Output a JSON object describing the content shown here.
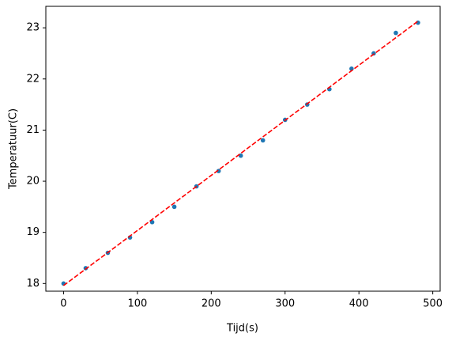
{
  "chart_data": {
    "type": "scatter",
    "xlabel": "Tijd(s)",
    "ylabel": "Temperatuur(C)",
    "xlim": [
      -24,
      510
    ],
    "ylim": [
      17.85,
      23.42
    ],
    "xticks": [
      0,
      100,
      200,
      300,
      400,
      500
    ],
    "yticks": [
      18,
      19,
      20,
      21,
      22,
      23
    ],
    "series": [
      {
        "color": "#1f77b4",
        "x": [
          0,
          30,
          60,
          90,
          120,
          150,
          180,
          210,
          240,
          270,
          300,
          330,
          360,
          390,
          420,
          450,
          480
        ],
        "values": [
          18.0,
          18.3,
          18.6,
          18.9,
          19.2,
          19.5,
          19.9,
          20.2,
          20.5,
          20.8,
          21.2,
          21.5,
          21.8,
          22.2,
          22.5,
          22.9,
          23.1
        ]
      },
      {
        "color": "#ff0000",
        "line": "dashed",
        "x": [
          0,
          480
        ],
        "values": [
          17.96,
          23.13
        ]
      }
    ]
  }
}
